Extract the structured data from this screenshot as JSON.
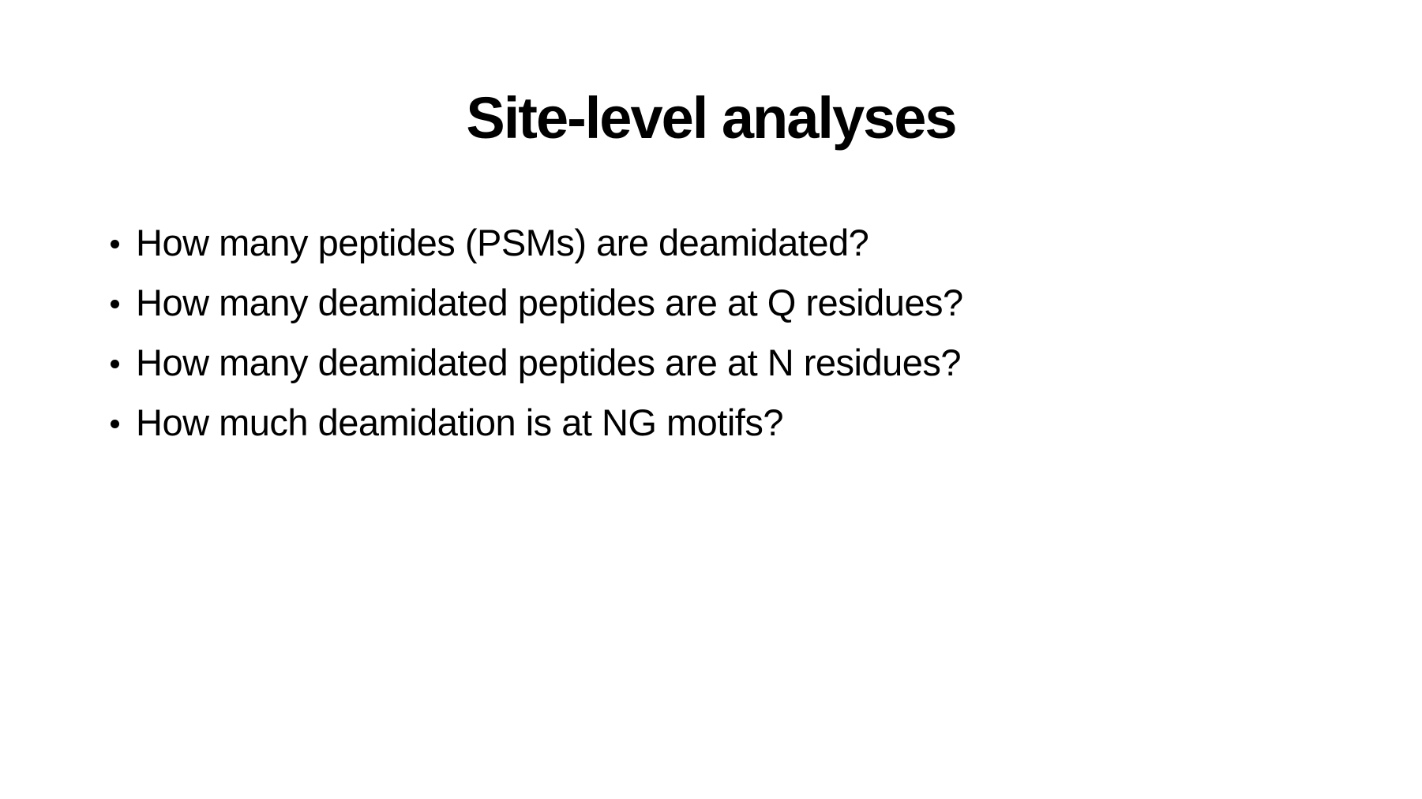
{
  "slide": {
    "title": "Site-level analyses",
    "bullets": [
      "How many peptides (PSMs) are deamidated?",
      "How many deamidated peptides are at Q residues?",
      "How many deamidated peptides are at N residues?",
      "How much deamidation is at NG motifs?"
    ]
  }
}
